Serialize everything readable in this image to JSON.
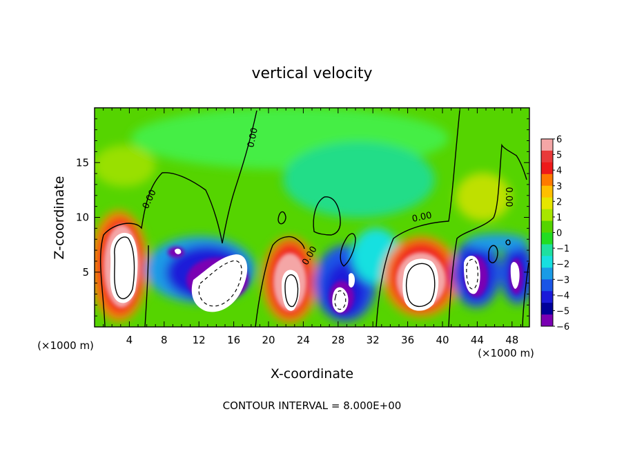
{
  "chart_data": {
    "type": "heatmap",
    "title": "vertical velocity",
    "xlabel": "X-coordinate",
    "ylabel": "Z-coordinate",
    "x_unit_left": "(×1000 m)",
    "x_unit_right": "(×1000 m)",
    "xlim": [
      0,
      50
    ],
    "ylim": [
      0,
      20
    ],
    "xticks": [
      4,
      8,
      12,
      16,
      20,
      24,
      28,
      32,
      36,
      40,
      44,
      48
    ],
    "yticks": [
      5,
      10,
      15
    ],
    "contour_label": "0.00",
    "footer": "CONTOUR INTERVAL = 8.000E+00",
    "colorbar": {
      "labels": [
        "6",
        "5",
        "4",
        "3",
        "2",
        "1",
        "0",
        "-1",
        "-2",
        "-3",
        "-4",
        "-5",
        "-6"
      ],
      "colors": [
        "#f4a6a6",
        "#e83a3a",
        "#ee1a1a",
        "#ff7a00",
        "#ffbf00",
        "#e6e600",
        "#a8e600",
        "#55d400",
        "#22dd22",
        "#1fe0a0",
        "#18e0e0",
        "#1a9be6",
        "#1a55e6",
        "#1a1ad9",
        "#000099",
        "#7a00b3"
      ]
    },
    "cells": [
      {
        "x": 3.3,
        "z": 5.0,
        "w": 3.2,
        "v": 9
      },
      {
        "x": 14.5,
        "z": 4.3,
        "w": 4.5,
        "v": -9
      },
      {
        "x": 22.3,
        "z": 4.0,
        "w": 3.0,
        "v": 9
      },
      {
        "x": 28.0,
        "z": 3.0,
        "w": 2.0,
        "v": -9
      },
      {
        "x": 37.0,
        "z": 4.3,
        "w": 4.0,
        "v": 9
      },
      {
        "x": 43.5,
        "z": 4.5,
        "w": 2.0,
        "v": -9
      },
      {
        "x": 48.0,
        "z": 4.5,
        "w": 1.5,
        "v": -9
      }
    ]
  }
}
